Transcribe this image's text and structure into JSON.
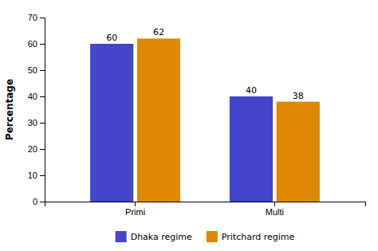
{
  "chart_data": {
    "type": "bar",
    "categories": [
      "Primi",
      "Multi"
    ],
    "series": [
      {
        "name": "Dhaka regime",
        "color": "#4444CC",
        "values": [
          60,
          40
        ]
      },
      {
        "name": "Pritchard regime",
        "color": "#DD8800",
        "values": [
          62,
          38
        ]
      }
    ],
    "ylabel": "Percentage",
    "ylim": [
      0,
      70
    ],
    "yticks": [
      0,
      10,
      20,
      30,
      40,
      50,
      60,
      70
    ],
    "grid": false,
    "legend": "bottom",
    "data_labels": true
  }
}
